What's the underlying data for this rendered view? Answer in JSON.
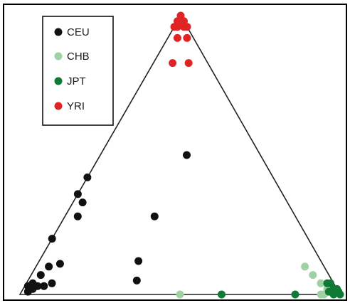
{
  "chart_data": {
    "type": "scatter",
    "layout": "ternary",
    "title": "",
    "legend_position": "top-left",
    "series": [
      {
        "name": "CEU",
        "color": "#111111",
        "points": [
          {
            "a": 0.97,
            "b": 0.02,
            "c": 0.01
          },
          {
            "a": 0.95,
            "b": 0.03,
            "c": 0.02
          },
          {
            "a": 0.96,
            "b": 0.01,
            "c": 0.03
          },
          {
            "a": 0.93,
            "b": 0.04,
            "c": 0.03
          },
          {
            "a": 0.94,
            "b": 0.02,
            "c": 0.04
          },
          {
            "a": 0.91,
            "b": 0.06,
            "c": 0.03
          },
          {
            "a": 0.9,
            "b": 0.03,
            "c": 0.07
          },
          {
            "a": 0.88,
            "b": 0.08,
            "c": 0.04
          },
          {
            "a": 0.86,
            "b": 0.04,
            "c": 0.1
          },
          {
            "a": 0.82,
            "b": 0.07,
            "c": 0.11
          },
          {
            "a": 0.8,
            "b": 0.0,
            "c": 0.2
          },
          {
            "a": 0.64,
            "b": 0.0,
            "c": 0.36
          },
          {
            "a": 0.58,
            "b": 0.0,
            "c": 0.42
          },
          {
            "a": 0.64,
            "b": 0.03,
            "c": 0.33
          },
          {
            "a": 0.68,
            "b": 0.04,
            "c": 0.28
          },
          {
            "a": 0.44,
            "b": 0.28,
            "c": 0.28
          },
          {
            "a": 0.57,
            "b": 0.31,
            "c": 0.12
          },
          {
            "a": 0.61,
            "b": 0.34,
            "c": 0.05
          },
          {
            "a": 0.23,
            "b": 0.27,
            "c": 0.5
          }
        ]
      },
      {
        "name": "CHB",
        "color": "#9fd1a2",
        "points": [
          {
            "a": 0.5,
            "b": 0.5,
            "c": 0.0
          },
          {
            "a": 0.06,
            "b": 0.94,
            "c": 0.0
          },
          {
            "a": 0.04,
            "b": 0.92,
            "c": 0.04
          },
          {
            "a": 0.05,
            "b": 0.88,
            "c": 0.07
          },
          {
            "a": 0.06,
            "b": 0.84,
            "c": 0.1
          },
          {
            "a": 0.05,
            "b": 0.95,
            "c": 0.0
          },
          {
            "a": 0.03,
            "b": 0.95,
            "c": 0.02
          }
        ]
      },
      {
        "name": "JPT",
        "color": "#0e7a36",
        "points": [
          {
            "a": 0.37,
            "b": 0.63,
            "c": 0.0
          },
          {
            "a": 0.14,
            "b": 0.86,
            "c": 0.0
          },
          {
            "a": 0.02,
            "b": 0.98,
            "c": 0.0
          },
          {
            "a": 0.01,
            "b": 0.97,
            "c": 0.02
          },
          {
            "a": 0.0,
            "b": 0.99,
            "c": 0.01
          },
          {
            "a": 0.03,
            "b": 0.96,
            "c": 0.01
          },
          {
            "a": 0.0,
            "b": 0.98,
            "c": 0.02
          },
          {
            "a": 0.02,
            "b": 0.94,
            "c": 0.04
          },
          {
            "a": 0.0,
            "b": 1.0,
            "c": 0.0
          },
          {
            "a": 0.01,
            "b": 0.95,
            "c": 0.04
          }
        ]
      },
      {
        "name": "YRI",
        "color": "#e02424",
        "points": [
          {
            "a": 0.0,
            "b": 0.0,
            "c": 1.0
          },
          {
            "a": 0.01,
            "b": 0.01,
            "c": 0.98
          },
          {
            "a": 0.02,
            "b": 0.0,
            "c": 0.98
          },
          {
            "a": 0.0,
            "b": 0.02,
            "c": 0.98
          },
          {
            "a": 0.03,
            "b": 0.01,
            "c": 0.96
          },
          {
            "a": 0.01,
            "b": 0.03,
            "c": 0.96
          },
          {
            "a": 0.04,
            "b": 0.0,
            "c": 0.96
          },
          {
            "a": 0.0,
            "b": 0.04,
            "c": 0.96
          },
          {
            "a": 0.05,
            "b": 0.03,
            "c": 0.92
          },
          {
            "a": 0.02,
            "b": 0.06,
            "c": 0.92
          },
          {
            "a": 0.11,
            "b": 0.06,
            "c": 0.83
          },
          {
            "a": 0.06,
            "b": 0.11,
            "c": 0.83
          }
        ]
      }
    ]
  }
}
